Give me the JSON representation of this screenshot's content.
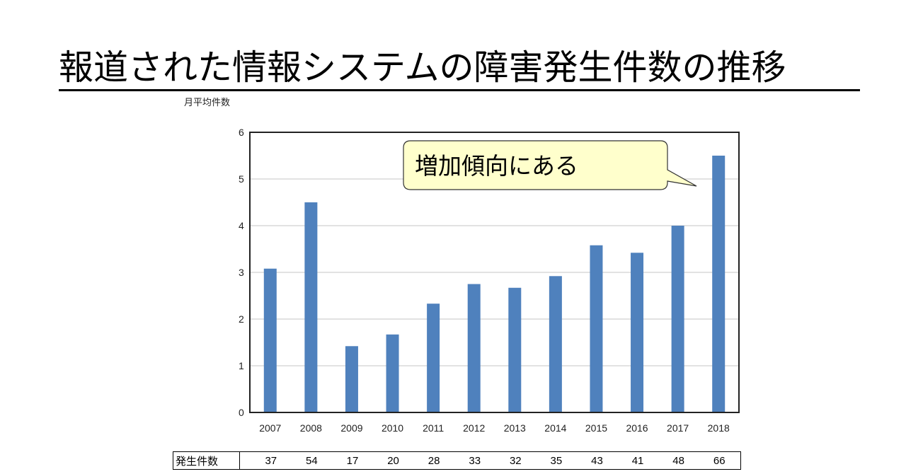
{
  "title": "報道された情報システムの障害発生件数の推移",
  "chart_data": {
    "type": "bar",
    "title": "報道された情報システムの障害発生件数の推移",
    "xlabel": "",
    "ylabel": "月平均件数",
    "categories": [
      "2007",
      "2008",
      "2009",
      "2010",
      "2011",
      "2012",
      "2013",
      "2014",
      "2015",
      "2016",
      "2017",
      "2018"
    ],
    "values": [
      3.08,
      4.5,
      1.42,
      1.67,
      2.33,
      2.75,
      2.67,
      2.92,
      3.58,
      3.42,
      4.0,
      5.5
    ],
    "ylim": [
      0,
      6
    ],
    "yticks": [
      0,
      1,
      2,
      3,
      4,
      5,
      6
    ],
    "grid": true,
    "legend": null,
    "bar_color": "#4F81BD",
    "annotations": [
      {
        "text": "増加傾向にある",
        "points_to": "2018",
        "style": "callout",
        "fill": "#FFFFCC"
      }
    ],
    "table": {
      "row_label": "発生件数",
      "values": [
        37,
        54,
        17,
        20,
        28,
        33,
        32,
        35,
        43,
        41,
        48,
        66
      ]
    }
  },
  "callout": {
    "text": "増加傾向にある"
  },
  "table": {
    "row_label": "発生件数",
    "values": [
      "37",
      "54",
      "17",
      "20",
      "28",
      "33",
      "32",
      "35",
      "43",
      "41",
      "48",
      "66"
    ]
  }
}
